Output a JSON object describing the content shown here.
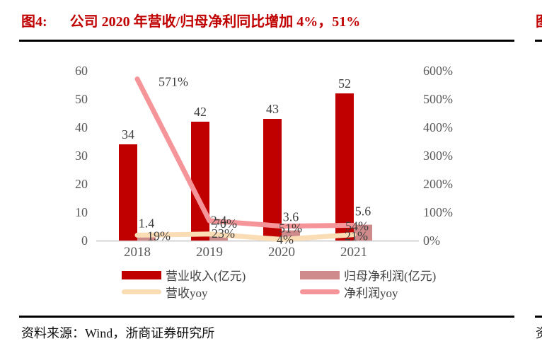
{
  "title": {
    "label": "图4:",
    "caption": "公司 2020 年营收/归母净利同比增加 4%，51%"
  },
  "footer": {
    "source": "资料来源：Wind，浙商证券研究所"
  },
  "edge": {
    "next_figure_fragment": "图",
    "next_source_fragment": "资"
  },
  "colors": {
    "title_red": "#C00000",
    "revenue_bar": "#C00000",
    "net_profit_bar": "#CF8A8B",
    "revenue_yoy_line": "#FADCB5",
    "net_profit_yoy_line": "#F59599",
    "axis_text": "#595959",
    "baseline": "#D6D6D6"
  },
  "chart_data": {
    "type": "bar",
    "subtype": "bar-line-combo-dual-axis",
    "categories": [
      "2018",
      "2019",
      "2020",
      "2021"
    ],
    "series": [
      {
        "name": "营业收入(亿元)",
        "kind": "bar",
        "axis": "left",
        "color": "#C00000",
        "values": [
          34,
          42,
          43,
          52
        ],
        "labels": [
          "34",
          "42",
          "43",
          "52"
        ]
      },
      {
        "name": "归母净利润(亿元)",
        "kind": "bar",
        "axis": "left",
        "color": "#CF8A8B",
        "values": [
          1.4,
          2.4,
          3.6,
          5.6
        ],
        "labels": [
          "1.4",
          "2.4",
          "3.6",
          "5.6"
        ]
      },
      {
        "name": "营收yoy",
        "kind": "line",
        "axis": "right",
        "color": "#FADCB5",
        "values": [
          19,
          23,
          4,
          21
        ],
        "labels": [
          "19%",
          "23%",
          "4%",
          "21%"
        ]
      },
      {
        "name": "净利润yoy",
        "kind": "line",
        "axis": "right",
        "color": "#F59599",
        "values": [
          571,
          70,
          51,
          54
        ],
        "labels": [
          "571%",
          "70%",
          "51%",
          "54%"
        ]
      }
    ],
    "left_axis": {
      "min": 0,
      "max": 60,
      "step": 10,
      "ticks": [
        "0",
        "10",
        "20",
        "30",
        "40",
        "50",
        "60"
      ]
    },
    "right_axis": {
      "min": 0,
      "max": 600,
      "step": 100,
      "ticks": [
        "0%",
        "100%",
        "200%",
        "300%",
        "400%",
        "500%",
        "600%"
      ]
    },
    "grid": "off",
    "legend_position": "bottom"
  }
}
